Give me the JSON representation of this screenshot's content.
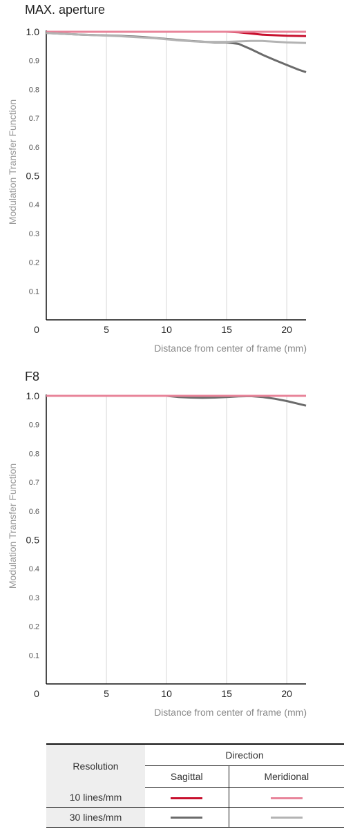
{
  "chart_data": [
    {
      "type": "line",
      "title": "MAX. aperture",
      "xlabel": "Distance from center of frame (mm)",
      "ylabel": "Modulation Transfer Function",
      "xlim": [
        0,
        21.6
      ],
      "ylim": [
        0,
        1.0
      ],
      "xticks": [
        "0",
        "5",
        "10",
        "15",
        "20"
      ],
      "yticks": [
        "1.0",
        "0.9",
        "0.8",
        "0.7",
        "0.6",
        "0.5",
        "0.4",
        "0.3",
        "0.2",
        "0.1"
      ],
      "grid": "vertical",
      "series": [
        {
          "id": "10s",
          "x": [
            0,
            5,
            10,
            12,
            14,
            15,
            16,
            17,
            18,
            19,
            20,
            21.6
          ],
          "y": [
            1.0,
            1.0,
            1.0,
            1.0,
            1.0,
            1.0,
            0.998,
            0.994,
            0.99,
            0.988,
            0.986,
            0.985
          ],
          "color": "#c8102e"
        },
        {
          "id": "10m",
          "x": [
            0,
            5,
            10,
            15,
            17,
            18,
            19,
            20,
            21.6
          ],
          "y": [
            1.0,
            1.0,
            1.0,
            1.0,
            1.0,
            1.0,
            1.0,
            1.0,
            1.0
          ],
          "color": "#e8849a"
        },
        {
          "id": "30s",
          "x": [
            0,
            3,
            6,
            8,
            10,
            12,
            14,
            15,
            16,
            17,
            18,
            19,
            20,
            21,
            21.6
          ],
          "y": [
            0.996,
            0.99,
            0.986,
            0.982,
            0.975,
            0.968,
            0.963,
            0.963,
            0.958,
            0.94,
            0.92,
            0.902,
            0.885,
            0.868,
            0.86
          ],
          "color": "#6b6b6b"
        },
        {
          "id": "30m",
          "x": [
            0,
            3,
            6,
            9,
            11,
            13,
            15,
            17,
            18,
            20,
            21.6
          ],
          "y": [
            0.996,
            0.99,
            0.985,
            0.978,
            0.97,
            0.965,
            0.965,
            0.968,
            0.968,
            0.963,
            0.961
          ],
          "color": "#b3b3b3"
        }
      ]
    },
    {
      "type": "line",
      "title": "F8",
      "xlabel": "Distance from center of frame (mm)",
      "ylabel": "Modulation Transfer Function",
      "xlim": [
        0,
        21.6
      ],
      "ylim": [
        0,
        1.0
      ],
      "xticks": [
        "0",
        "5",
        "10",
        "15",
        "20"
      ],
      "yticks": [
        "1.0",
        "0.9",
        "0.8",
        "0.7",
        "0.6",
        "0.5",
        "0.4",
        "0.3",
        "0.2",
        "0.1"
      ],
      "grid": "vertical",
      "series": [
        {
          "id": "30m",
          "x": [
            0,
            10,
            15,
            17,
            18,
            20,
            21.6
          ],
          "y": [
            1.0,
            1.0,
            1.0,
            1.0,
            1.0,
            1.0,
            1.0
          ],
          "color": "#b3b3b3"
        },
        {
          "id": "30s",
          "x": [
            0,
            5,
            10,
            11,
            12,
            13,
            14,
            15,
            16,
            17,
            18,
            19,
            20,
            21,
            21.6
          ],
          "y": [
            1.0,
            1.0,
            1.0,
            0.996,
            0.994,
            0.993,
            0.994,
            0.996,
            0.998,
            0.999,
            0.996,
            0.99,
            0.982,
            0.972,
            0.966
          ],
          "color": "#6b6b6b"
        },
        {
          "id": "10s",
          "x": [
            0,
            10,
            15,
            20,
            21.6
          ],
          "y": [
            1.0,
            1.0,
            1.0,
            1.0,
            1.0
          ],
          "color": "#c8102e"
        },
        {
          "id": "10m",
          "x": [
            0,
            10,
            15,
            20,
            21.6
          ],
          "y": [
            1.0,
            1.0,
            1.0,
            1.0,
            1.0
          ],
          "color": "#e8849a"
        }
      ]
    }
  ],
  "legend": {
    "resolution_header": "Resolution",
    "direction_header": "Direction",
    "sagittal": "Sagittal",
    "meridional": "Meridional",
    "rows": [
      {
        "label": "10 lines/mm",
        "sagittal_color": "#c8102e",
        "meridional_color": "#e8849a"
      },
      {
        "label": "30 lines/mm",
        "sagittal_color": "#6b6b6b",
        "meridional_color": "#b3b3b3"
      }
    ]
  }
}
